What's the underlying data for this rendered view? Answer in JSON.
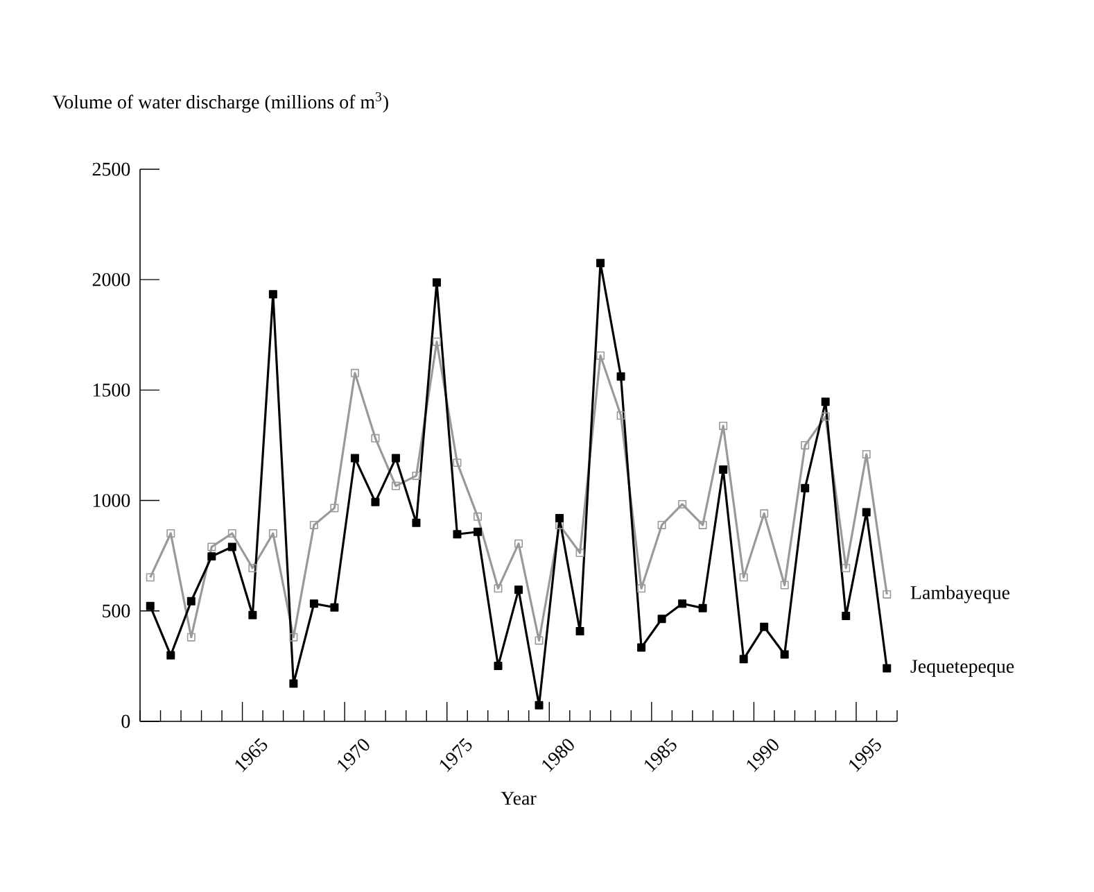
{
  "chart_data": {
    "type": "line",
    "xlabel": "Year",
    "ylabel": "Volume of water discharge (millions of m$^{3}$)",
    "x": [
      1960.5,
      1961.5,
      1962.5,
      1963.5,
      1964.5,
      1965.5,
      1966.5,
      1967.5,
      1968.5,
      1969.5,
      1970.5,
      1971.5,
      1972.5,
      1973.5,
      1974.5,
      1975.5,
      1976.5,
      1977.5,
      1978.5,
      1979.5,
      1980.5,
      1981.5,
      1982.5,
      1983.5,
      1984.5,
      1985.5,
      1986.5,
      1987.5,
      1988.5,
      1989.5,
      1990.5,
      1991.5,
      1992.5,
      1993.5,
      1994.5,
      1995.5,
      1996.5
    ],
    "series": [
      {
        "name": "Lambayeque",
        "color": "#999999",
        "marker": "square",
        "values": [
          652,
          851,
          381,
          790,
          851,
          694,
          851,
          381,
          889,
          966,
          1577,
          1282,
          1066,
          1112,
          1719,
          1171,
          927,
          602,
          805,
          366,
          889,
          763,
          1656,
          1385,
          602,
          889,
          983,
          889,
          1338,
          652,
          941,
          617,
          1250,
          1380,
          694,
          1209,
          575
        ]
      },
      {
        "name": "Jequetepeque",
        "color": "#000000",
        "marker": "square*",
        "values": [
          522,
          299,
          544,
          747,
          790,
          481,
          1934,
          171,
          533,
          516,
          1192,
          993,
          1192,
          899,
          1987,
          847,
          858,
          251,
          596,
          73,
          920,
          408,
          2075,
          1562,
          334,
          464,
          533,
          513,
          1140,
          282,
          428,
          303,
          1056,
          1447,
          477,
          947,
          240
        ]
      }
    ],
    "xlim": [
      1960,
      1997
    ],
    "xticks": [
      {
        "value": 1960,
        "label": null
      },
      {
        "value": 1961,
        "label": null
      },
      {
        "value": 1962,
        "label": null
      },
      {
        "value": 1963,
        "label": null
      },
      {
        "value": 1964,
        "label": null
      },
      {
        "value": 1965,
        "label": "1965"
      },
      {
        "value": 1966,
        "label": null
      },
      {
        "value": 1967,
        "label": null
      },
      {
        "value": 1968,
        "label": null
      },
      {
        "value": 1969,
        "label": null
      },
      {
        "value": 1970,
        "label": "1970"
      },
      {
        "value": 1971,
        "label": null
      },
      {
        "value": 1972,
        "label": null
      },
      {
        "value": 1973,
        "label": null
      },
      {
        "value": 1974,
        "label": null
      },
      {
        "value": 1975,
        "label": "1975"
      },
      {
        "value": 1976,
        "label": null
      },
      {
        "value": 1977,
        "label": null
      },
      {
        "value": 1978,
        "label": null
      },
      {
        "value": 1979,
        "label": null
      },
      {
        "value": 1980,
        "label": "1980"
      },
      {
        "value": 1981,
        "label": null
      },
      {
        "value": 1982,
        "label": null
      },
      {
        "value": 1983,
        "label": null
      },
      {
        "value": 1984,
        "label": null
      },
      {
        "value": 1985,
        "label": "1985"
      },
      {
        "value": 1986,
        "label": null
      },
      {
        "value": 1987,
        "label": null
      },
      {
        "value": 1988,
        "label": null
      },
      {
        "value": 1989,
        "label": null
      },
      {
        "value": 1990,
        "label": "1990"
      },
      {
        "value": 1991,
        "label": null
      },
      {
        "value": 1992,
        "label": null
      },
      {
        "value": 1993,
        "label": null
      },
      {
        "value": 1994,
        "label": null
      },
      {
        "value": 1995,
        "label": "1995"
      },
      {
        "value": 1996,
        "label": null
      },
      {
        "value": 1997,
        "label": null
      }
    ],
    "ylim": [
      0,
      2500
    ],
    "yticks": [
      0,
      500,
      1000,
      1500,
      2000,
      2500
    ],
    "grid": false,
    "legend": false,
    "line_style": "solid"
  }
}
